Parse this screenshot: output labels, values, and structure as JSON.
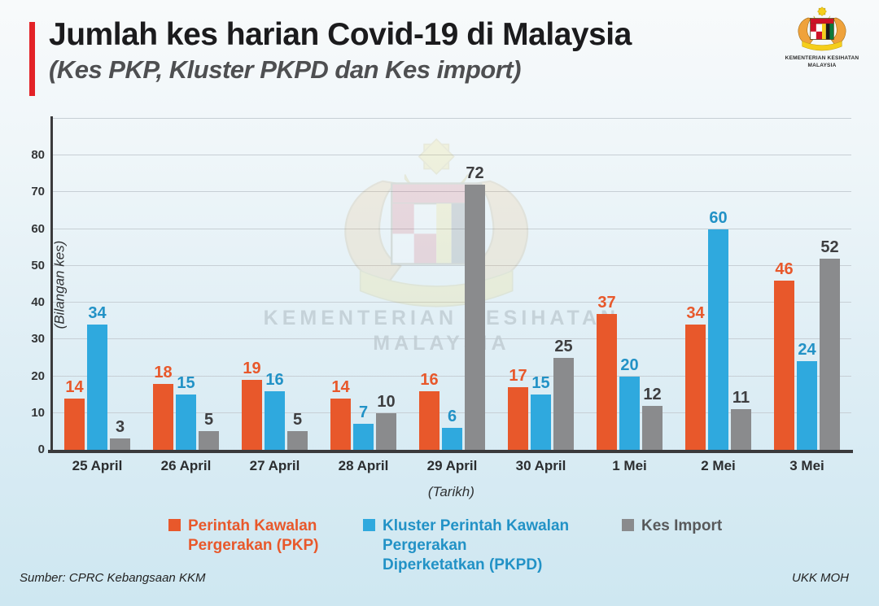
{
  "header": {
    "title": "Jumlah kes harian Covid-19 di Malaysia",
    "subtitle": "(Kes PKP, Kluster PKPD dan Kes import)"
  },
  "logo": {
    "line1": "KEMENTERIAN KESIHATAN",
    "line2": "MALAYSIA"
  },
  "watermark": {
    "line1": "KEMENTERIAN KESIHATAN",
    "line2": "MALAYSIA"
  },
  "colors": {
    "accent_red": "#E32227",
    "pkp_orange": "#E8582B",
    "pkpd_blue": "#2FA9DE",
    "pkpd_label_blue": "#2292C6",
    "import_gray": "#8A8B8D",
    "dark_label": "#3E3E40",
    "axis": "#3A3A3C"
  },
  "chart_data": {
    "type": "bar",
    "title": "Jumlah kes harian Covid-19 di Malaysia (Kes PKP, Kluster PKPD dan Kes import)",
    "categories": [
      "25 April",
      "26 April",
      "27 April",
      "28 April",
      "29 April",
      "30 April",
      "1 Mei",
      "2 Mei",
      "3 Mei"
    ],
    "series": [
      {
        "name": "Perintah Kawalan Pergerakan (PKP)",
        "short": "pkp",
        "color": "#E8582B",
        "label_color": "#E8582B",
        "values": [
          14,
          18,
          19,
          14,
          16,
          17,
          37,
          34,
          46
        ]
      },
      {
        "name": "Kluster Perintah Kawalan Pergerakan Diperketatkan (PKPD)",
        "short": "pkpd",
        "color": "#2FA9DE",
        "label_color": "#2292C6",
        "values": [
          34,
          15,
          16,
          7,
          6,
          15,
          20,
          60,
          24
        ]
      },
      {
        "name": "Kes Import",
        "short": "import",
        "color": "#8A8B8D",
        "label_color": "#3E3E40",
        "values": [
          3,
          5,
          5,
          10,
          72,
          25,
          12,
          11,
          52
        ]
      }
    ],
    "xlabel": "(Tarikh)",
    "ylabel": "(Bilangan kes)",
    "ylim": [
      0,
      90
    ],
    "yticks": [
      0,
      10,
      20,
      30,
      40,
      50,
      60,
      70,
      80
    ],
    "grid": true,
    "legend_position": "bottom"
  },
  "legend": {
    "items": [
      {
        "short": "pkp",
        "label": "Perintah Kawalan Pergerakan (PKP)",
        "swatch_color": "#E8582B",
        "text_color": "#E8582B"
      },
      {
        "short": "pkpd",
        "label": "Kluster Perintah Kawalan Pergerakan Diperketatkan (PKPD)",
        "swatch_color": "#2FA9DE",
        "text_color": "#2292C6"
      },
      {
        "short": "import",
        "label": "Kes Import",
        "swatch_color": "#8A8B8D",
        "text_color": "#58595B"
      }
    ]
  },
  "footer": {
    "source": "Sumber: CPRC Kebangsaan KKM",
    "credit": "UKK MOH"
  }
}
